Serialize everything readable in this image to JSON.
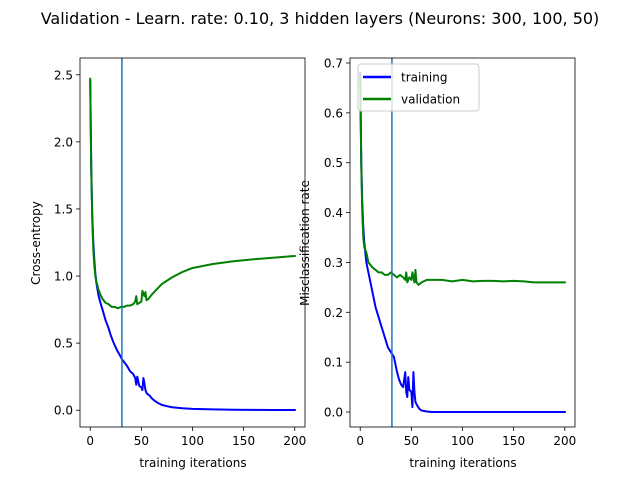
{
  "suptitle": "Validation - Learn. rate: 0.10, 3 hidden layers (Neurons: 300, 100, 50)",
  "chart_data": [
    {
      "type": "line",
      "ylabel": "Cross-entropy",
      "xlabel": "training iterations",
      "xlim": [
        -10,
        210
      ],
      "ylim": [
        -0.125,
        2.625
      ],
      "xticks": [
        0,
        50,
        100,
        150,
        200
      ],
      "yticks": [
        0.0,
        0.5,
        1.0,
        1.5,
        2.0,
        2.5
      ],
      "ytick_labels": [
        "0.0",
        "0.5",
        "1.0",
        "1.5",
        "2.0",
        "2.5"
      ],
      "vline_x": 31,
      "vline_color": "#1f77b4",
      "series": [
        {
          "name": "training",
          "color": "#0000ff",
          "x": [
            0,
            1,
            2,
            3,
            4,
            5,
            6,
            8,
            10,
            12,
            15,
            18,
            20,
            23,
            26,
            29,
            31,
            33,
            36,
            39,
            42,
            44,
            45,
            46,
            48,
            50,
            51,
            52,
            53,
            54,
            55,
            56,
            58,
            60,
            63,
            66,
            70,
            75,
            80,
            90,
            100,
            120,
            140,
            160,
            180,
            200
          ],
          "values": [
            2.45,
            1.8,
            1.45,
            1.25,
            1.12,
            1.02,
            0.95,
            0.86,
            0.8,
            0.75,
            0.67,
            0.61,
            0.56,
            0.5,
            0.45,
            0.41,
            0.38,
            0.36,
            0.33,
            0.29,
            0.27,
            0.24,
            0.19,
            0.25,
            0.18,
            0.17,
            0.15,
            0.24,
            0.2,
            0.15,
            0.13,
            0.12,
            0.11,
            0.09,
            0.07,
            0.055,
            0.04,
            0.03,
            0.022,
            0.015,
            0.01,
            0.006,
            0.004,
            0.003,
            0.002,
            0.002
          ]
        },
        {
          "name": "validation",
          "color": "#008000",
          "x": [
            0,
            1,
            2,
            3,
            4,
            5,
            6,
            8,
            10,
            12,
            15,
            18,
            21,
            24,
            27,
            30,
            33,
            36,
            39,
            42,
            44,
            45,
            46,
            48,
            50,
            51,
            52,
            53,
            54,
            55,
            57,
            60,
            65,
            70,
            80,
            90,
            100,
            120,
            140,
            160,
            180,
            200
          ],
          "values": [
            2.47,
            1.8,
            1.42,
            1.2,
            1.08,
            1.0,
            0.96,
            0.9,
            0.86,
            0.83,
            0.8,
            0.79,
            0.77,
            0.77,
            0.76,
            0.77,
            0.77,
            0.78,
            0.78,
            0.79,
            0.81,
            0.85,
            0.79,
            0.8,
            0.81,
            0.89,
            0.87,
            0.85,
            0.88,
            0.82,
            0.83,
            0.86,
            0.9,
            0.94,
            0.99,
            1.03,
            1.06,
            1.09,
            1.11,
            1.125,
            1.137,
            1.15
          ]
        }
      ]
    },
    {
      "type": "line",
      "ylabel": "Misclassification rate",
      "xlabel": "training iterations",
      "xlim": [
        -10,
        210
      ],
      "ylim": [
        -0.03,
        0.71
      ],
      "xticks": [
        0,
        50,
        100,
        150,
        200
      ],
      "yticks": [
        0.0,
        0.1,
        0.2,
        0.3,
        0.4,
        0.5,
        0.6,
        0.7
      ],
      "ytick_labels": [
        "0.0",
        "0.1",
        "0.2",
        "0.3",
        "0.4",
        "0.5",
        "0.6",
        "0.7"
      ],
      "vline_x": 31,
      "vline_color": "#1f77b4",
      "legend": {
        "placement": "upper-left",
        "entries": [
          "training",
          "validation"
        ]
      },
      "series": [
        {
          "name": "training",
          "color": "#0000ff",
          "x": [
            0,
            1,
            2,
            3,
            4,
            5,
            6,
            8,
            10,
            12,
            15,
            18,
            21,
            24,
            27,
            30,
            33,
            36,
            38,
            40,
            42,
            44,
            45,
            46,
            47,
            48,
            50,
            51,
            52,
            53,
            54,
            56,
            58,
            60,
            65,
            70,
            80,
            100,
            150,
            200
          ],
          "values": [
            0.68,
            0.5,
            0.42,
            0.37,
            0.34,
            0.32,
            0.3,
            0.28,
            0.26,
            0.24,
            0.21,
            0.19,
            0.17,
            0.15,
            0.13,
            0.12,
            0.11,
            0.08,
            0.065,
            0.055,
            0.05,
            0.08,
            0.04,
            0.03,
            0.07,
            0.045,
            0.04,
            0.01,
            0.08,
            0.04,
            0.02,
            0.012,
            0.006,
            0.003,
            0.001,
            0.0,
            0.0,
            0.0,
            0.0,
            0.0
          ]
        },
        {
          "name": "validation",
          "color": "#008000",
          "x": [
            0,
            1,
            2,
            3,
            4,
            5,
            6,
            8,
            10,
            12,
            15,
            18,
            21,
            24,
            27,
            30,
            33,
            36,
            39,
            42,
            44,
            45,
            46,
            48,
            50,
            51,
            52,
            53,
            54,
            55,
            57,
            60,
            65,
            70,
            80,
            90,
            100,
            110,
            120,
            130,
            140,
            150,
            160,
            170,
            180,
            190,
            200
          ],
          "values": [
            0.67,
            0.5,
            0.4,
            0.35,
            0.33,
            0.325,
            0.32,
            0.3,
            0.295,
            0.29,
            0.285,
            0.28,
            0.28,
            0.275,
            0.275,
            0.28,
            0.275,
            0.27,
            0.275,
            0.27,
            0.265,
            0.28,
            0.26,
            0.27,
            0.265,
            0.28,
            0.27,
            0.26,
            0.285,
            0.26,
            0.255,
            0.26,
            0.265,
            0.265,
            0.265,
            0.262,
            0.265,
            0.262,
            0.263,
            0.263,
            0.262,
            0.263,
            0.262,
            0.26,
            0.26,
            0.26,
            0.26
          ]
        }
      ]
    }
  ]
}
